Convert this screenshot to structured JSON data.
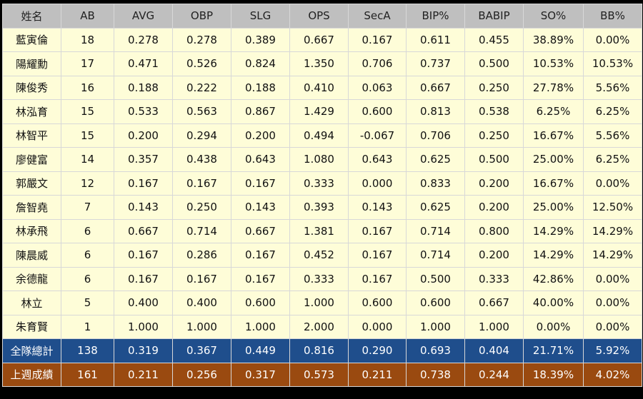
{
  "table": {
    "columns": [
      "姓名",
      "AB",
      "AVG",
      "OBP",
      "SLG",
      "OPS",
      "SecA",
      "BIP%",
      "BABIP",
      "SO%",
      "BB%"
    ],
    "rows": [
      [
        "藍寅倫",
        "18",
        "0.278",
        "0.278",
        "0.389",
        "0.667",
        "0.167",
        "0.611",
        "0.455",
        "38.89%",
        "0.00%"
      ],
      [
        "陽耀勳",
        "17",
        "0.471",
        "0.526",
        "0.824",
        "1.350",
        "0.706",
        "0.737",
        "0.500",
        "10.53%",
        "10.53%"
      ],
      [
        "陳俊秀",
        "16",
        "0.188",
        "0.222",
        "0.188",
        "0.410",
        "0.063",
        "0.667",
        "0.250",
        "27.78%",
        "5.56%"
      ],
      [
        "林泓育",
        "15",
        "0.533",
        "0.563",
        "0.867",
        "1.429",
        "0.600",
        "0.813",
        "0.538",
        "6.25%",
        "6.25%"
      ],
      [
        "林智平",
        "15",
        "0.200",
        "0.294",
        "0.200",
        "0.494",
        "-0.067",
        "0.706",
        "0.250",
        "16.67%",
        "5.56%"
      ],
      [
        "廖健富",
        "14",
        "0.357",
        "0.438",
        "0.643",
        "1.080",
        "0.643",
        "0.625",
        "0.500",
        "25.00%",
        "6.25%"
      ],
      [
        "郭嚴文",
        "12",
        "0.167",
        "0.167",
        "0.167",
        "0.333",
        "0.000",
        "0.833",
        "0.200",
        "16.67%",
        "0.00%"
      ],
      [
        "詹智堯",
        "7",
        "0.143",
        "0.250",
        "0.143",
        "0.393",
        "0.143",
        "0.625",
        "0.200",
        "25.00%",
        "12.50%"
      ],
      [
        "林承飛",
        "6",
        "0.667",
        "0.714",
        "0.667",
        "1.381",
        "0.167",
        "0.714",
        "0.800",
        "14.29%",
        "14.29%"
      ],
      [
        "陳晨威",
        "6",
        "0.167",
        "0.286",
        "0.167",
        "0.452",
        "0.167",
        "0.714",
        "0.200",
        "14.29%",
        "14.29%"
      ],
      [
        "余德龍",
        "6",
        "0.167",
        "0.167",
        "0.167",
        "0.333",
        "0.167",
        "0.500",
        "0.333",
        "42.86%",
        "0.00%"
      ],
      [
        "林立",
        "5",
        "0.400",
        "0.400",
        "0.600",
        "1.000",
        "0.600",
        "0.600",
        "0.667",
        "40.00%",
        "0.00%"
      ],
      [
        "朱育賢",
        "1",
        "1.000",
        "1.000",
        "1.000",
        "2.000",
        "0.000",
        "1.000",
        "1.000",
        "0.00%",
        "0.00%"
      ]
    ],
    "team_total": [
      "全隊總計",
      "138",
      "0.319",
      "0.367",
      "0.449",
      "0.816",
      "0.290",
      "0.693",
      "0.404",
      "21.71%",
      "5.92%"
    ],
    "last_week": [
      "上週成績",
      "161",
      "0.211",
      "0.256",
      "0.317",
      "0.573",
      "0.211",
      "0.738",
      "0.244",
      "18.39%",
      "4.02%"
    ]
  },
  "colors": {
    "header_bg": "#bfbfbf",
    "cell_bg": "#fefdd8",
    "team_total_bg": "#1f4e8c",
    "last_week_bg": "#9a4a10",
    "border": "#d8d8d8"
  }
}
